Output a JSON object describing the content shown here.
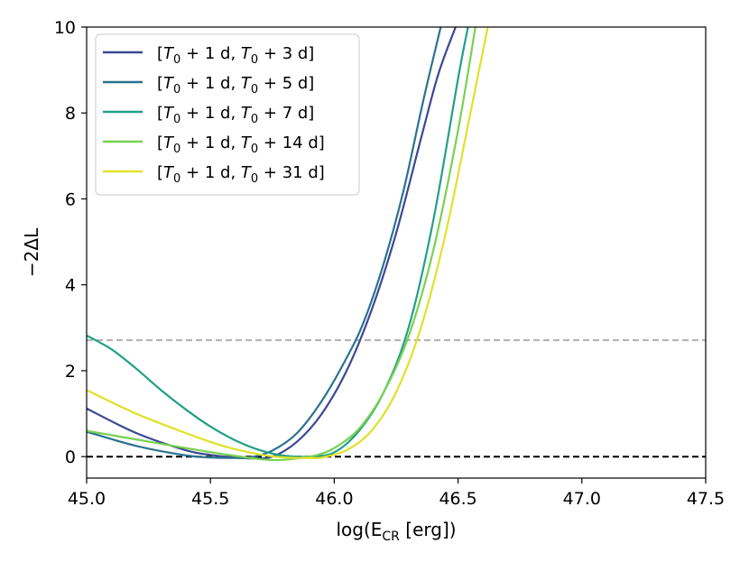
{
  "chart_data": {
    "type": "line",
    "title": "",
    "xlabel": "log(E_CR [erg])",
    "xlabel_main": "log(E",
    "xlabel_sub": "CR",
    "xlabel_tail": " [erg])",
    "ylabel": "−2ΔL",
    "xlim": [
      45.0,
      47.5
    ],
    "ylim": [
      -0.5,
      10
    ],
    "x_ticks": [
      45.0,
      45.5,
      46.0,
      46.5,
      47.0,
      47.5
    ],
    "x_tick_labels": [
      "45.0",
      "45.5",
      "46.0",
      "46.5",
      "47.0",
      "47.5"
    ],
    "y_ticks": [
      0,
      2,
      4,
      6,
      8,
      10
    ],
    "y_tick_labels": [
      "0",
      "2",
      "4",
      "6",
      "8",
      "10"
    ],
    "legend_position": "top-left",
    "reference_lines": [
      {
        "name": "threshold",
        "y": 2.71,
        "color": "#b0b0b0",
        "style": "dashed"
      },
      {
        "name": "zero",
        "y": 0,
        "color": "#000000",
        "style": "dashed"
      }
    ],
    "series": [
      {
        "name": "[T0 + 1 d, T0 + 3 d]",
        "legend": {
          "a": "[",
          "t1": "T",
          "s1": "0",
          "b": " + 1 d, ",
          "t2": "T",
          "s2": "0",
          "c": " + 3 d]"
        },
        "color": "#3b4994",
        "x": [
          45.0,
          45.2,
          45.4,
          45.5,
          45.6,
          45.66,
          45.75,
          45.85,
          45.95,
          46.05,
          46.15,
          46.25,
          46.35,
          46.42,
          46.49
        ],
        "y": [
          1.12,
          0.55,
          0.15,
          0.04,
          -0.02,
          -0.04,
          0.0,
          0.35,
          1.0,
          2.0,
          3.4,
          5.2,
          7.4,
          8.9,
          10.0
        ]
      },
      {
        "name": "[T0 + 1 d, T0 + 5 d]",
        "legend": {
          "a": "[",
          "t1": "T",
          "s1": "0",
          "b": " + 1 d, ",
          "t2": "T",
          "s2": "0",
          "c": " + 5 d]"
        },
        "color": "#2c728e",
        "x": [
          45.0,
          45.2,
          45.4,
          45.5,
          45.6,
          45.66,
          45.75,
          45.85,
          45.95,
          46.05,
          46.12,
          46.2,
          46.28,
          46.36,
          46.43
        ],
        "y": [
          0.58,
          0.25,
          0.03,
          -0.02,
          -0.03,
          -0.02,
          0.14,
          0.55,
          1.3,
          2.3,
          3.15,
          4.5,
          6.2,
          8.3,
          10.0
        ]
      },
      {
        "name": "[T0 + 1 d, T0 + 7 d]",
        "legend": {
          "a": "[",
          "t1": "T",
          "s1": "0",
          "b": " + 1 d, ",
          "t2": "T",
          "s2": "0",
          "c": " + 7 d]"
        },
        "color": "#21a087",
        "x": [
          45.0,
          45.1,
          45.2,
          45.3,
          45.4,
          45.5,
          45.6,
          45.7,
          45.8,
          45.9,
          46.0,
          46.1,
          46.2,
          46.3,
          46.4,
          46.5,
          46.54
        ],
        "y": [
          2.82,
          2.5,
          2.05,
          1.55,
          1.1,
          0.7,
          0.38,
          0.15,
          0.02,
          0.0,
          0.1,
          0.6,
          1.5,
          3.0,
          5.5,
          8.8,
          10.0
        ]
      },
      {
        "name": "[T0 + 1 d, T0 + 14 d]",
        "legend": {
          "a": "[",
          "t1": "T",
          "s1": "0",
          "b": " + 1 d, ",
          "t2": "T",
          "s2": "0",
          "c": " + 14 d]"
        },
        "color": "#78d151",
        "x": [
          45.0,
          45.2,
          45.4,
          45.55,
          45.7,
          45.78,
          45.85,
          45.92,
          46.0,
          46.1,
          46.2,
          46.3,
          46.4,
          46.5,
          46.57
        ],
        "y": [
          0.6,
          0.4,
          0.2,
          0.06,
          -0.06,
          -0.08,
          -0.04,
          0.02,
          0.2,
          0.65,
          1.5,
          2.8,
          4.8,
          7.6,
          10.0
        ]
      },
      {
        "name": "[T0 + 1 d, T0 + 31 d]",
        "legend": {
          "a": "[",
          "t1": "T",
          "s1": "0",
          "b": " + 1 d, ",
          "t2": "T",
          "s2": "0",
          "c": " + 31 d]"
        },
        "color": "#dfe22a",
        "x": [
          45.0,
          45.2,
          45.4,
          45.55,
          45.7,
          45.8,
          45.9,
          45.95,
          46.05,
          46.15,
          46.25,
          46.35,
          46.45,
          46.55,
          46.62
        ],
        "y": [
          1.55,
          1.0,
          0.55,
          0.25,
          0.05,
          -0.02,
          -0.03,
          -0.02,
          0.15,
          0.6,
          1.5,
          3.0,
          5.2,
          8.0,
          10.0
        ]
      }
    ]
  }
}
